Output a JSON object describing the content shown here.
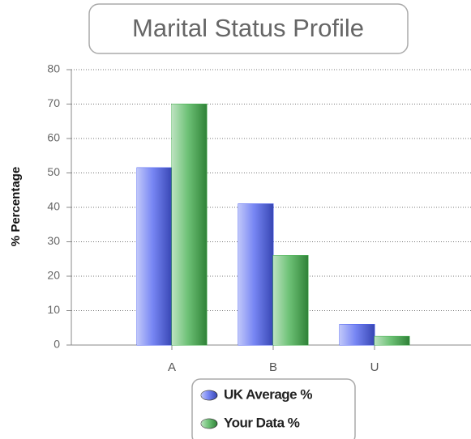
{
  "chart_data": {
    "type": "bar",
    "title": "Marital Status Profile",
    "y_label": "% Percentage",
    "categories": [
      "A",
      "B",
      "U"
    ],
    "series": [
      {
        "name": "UK Average %",
        "color": "#4a5ef0",
        "values": [
          51.5,
          41,
          6
        ]
      },
      {
        "name": "Your Data %",
        "color": "#3fae4a",
        "values": [
          70,
          26,
          2.5
        ]
      }
    ],
    "ylim": [
      0,
      80
    ],
    "yticks": [
      0,
      10,
      20,
      30,
      40,
      50,
      60,
      70,
      80
    ],
    "grid": true,
    "legend": "bottom"
  }
}
